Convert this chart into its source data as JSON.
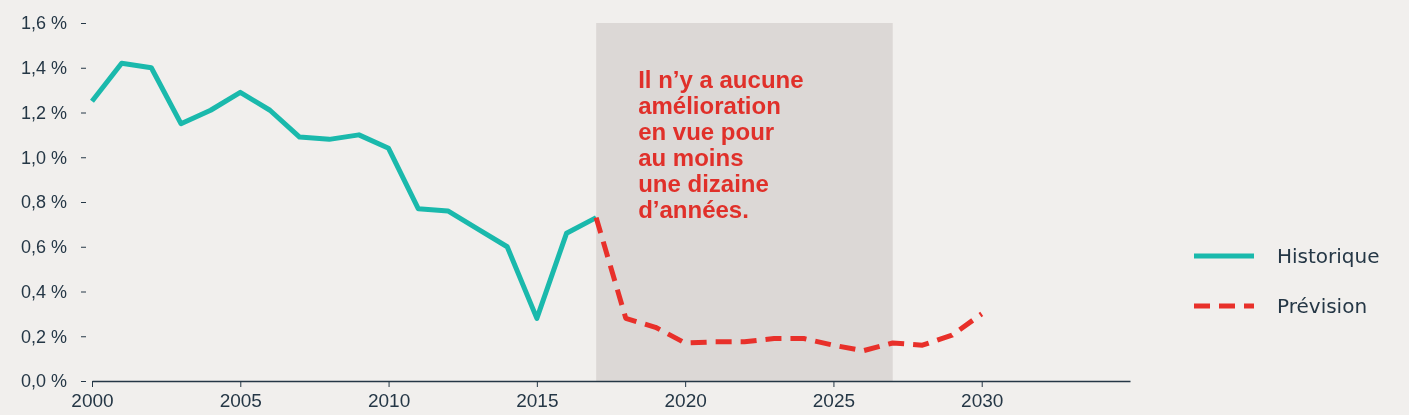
{
  "chart_data": {
    "type": "line",
    "x": [
      2000,
      2001,
      2002,
      2003,
      2004,
      2005,
      2006,
      2007,
      2008,
      2009,
      2010,
      2011,
      2012,
      2013,
      2014,
      2015,
      2016,
      2017
    ],
    "series": [
      {
        "name": "Historique",
        "color": "#1ab9ac",
        "line_style": "solid",
        "values": [
          1.25,
          1.42,
          1.4,
          1.15,
          1.21,
          1.29,
          1.21,
          1.09,
          1.08,
          1.1,
          1.04,
          0.77,
          0.76,
          0.68,
          0.6,
          0.28,
          0.66,
          0.73
        ]
      },
      {
        "name": "Prévision",
        "color": "#e8302a",
        "line_style": "dashed",
        "x": [
          2017,
          2018,
          2019,
          2020,
          2021,
          2022,
          2023,
          2024,
          2025,
          2026,
          2027,
          2028,
          2029,
          2030
        ],
        "values": [
          0.73,
          0.28,
          0.24,
          0.17,
          0.175,
          0.175,
          0.19,
          0.19,
          0.16,
          0.135,
          0.17,
          0.16,
          0.205,
          0.3
        ]
      }
    ],
    "xlim": [
      2000,
      2035
    ],
    "xticks": [
      2000,
      2005,
      2010,
      2015,
      2020,
      2025,
      2030
    ],
    "ylim": [
      0,
      1.6
    ],
    "yticks": [
      {
        "value": 0,
        "label": "0,0 %"
      },
      {
        "value": 0.2,
        "label": "0,2 %"
      },
      {
        "value": 0.4,
        "label": "0,4 %"
      },
      {
        "value": 0.6,
        "label": "0,6 %"
      },
      {
        "value": 0.8,
        "label": "0,8 %"
      },
      {
        "value": 1.0,
        "label": "1,0 %"
      },
      {
        "value": 1.2,
        "label": "1,2 %"
      },
      {
        "value": 1.4,
        "label": "1,4 %"
      },
      {
        "value": 1.6,
        "label": "1,6 %"
      }
    ],
    "bands": [
      {
        "axis": "x",
        "from": 2017,
        "to": 2027,
        "color": "#dcd8d6",
        "label": "Il n’y a aucune\namélioration\nen vue pour\nau moins\nune dizaine\nd’années."
      }
    ],
    "legend": "right",
    "grid": false
  }
}
